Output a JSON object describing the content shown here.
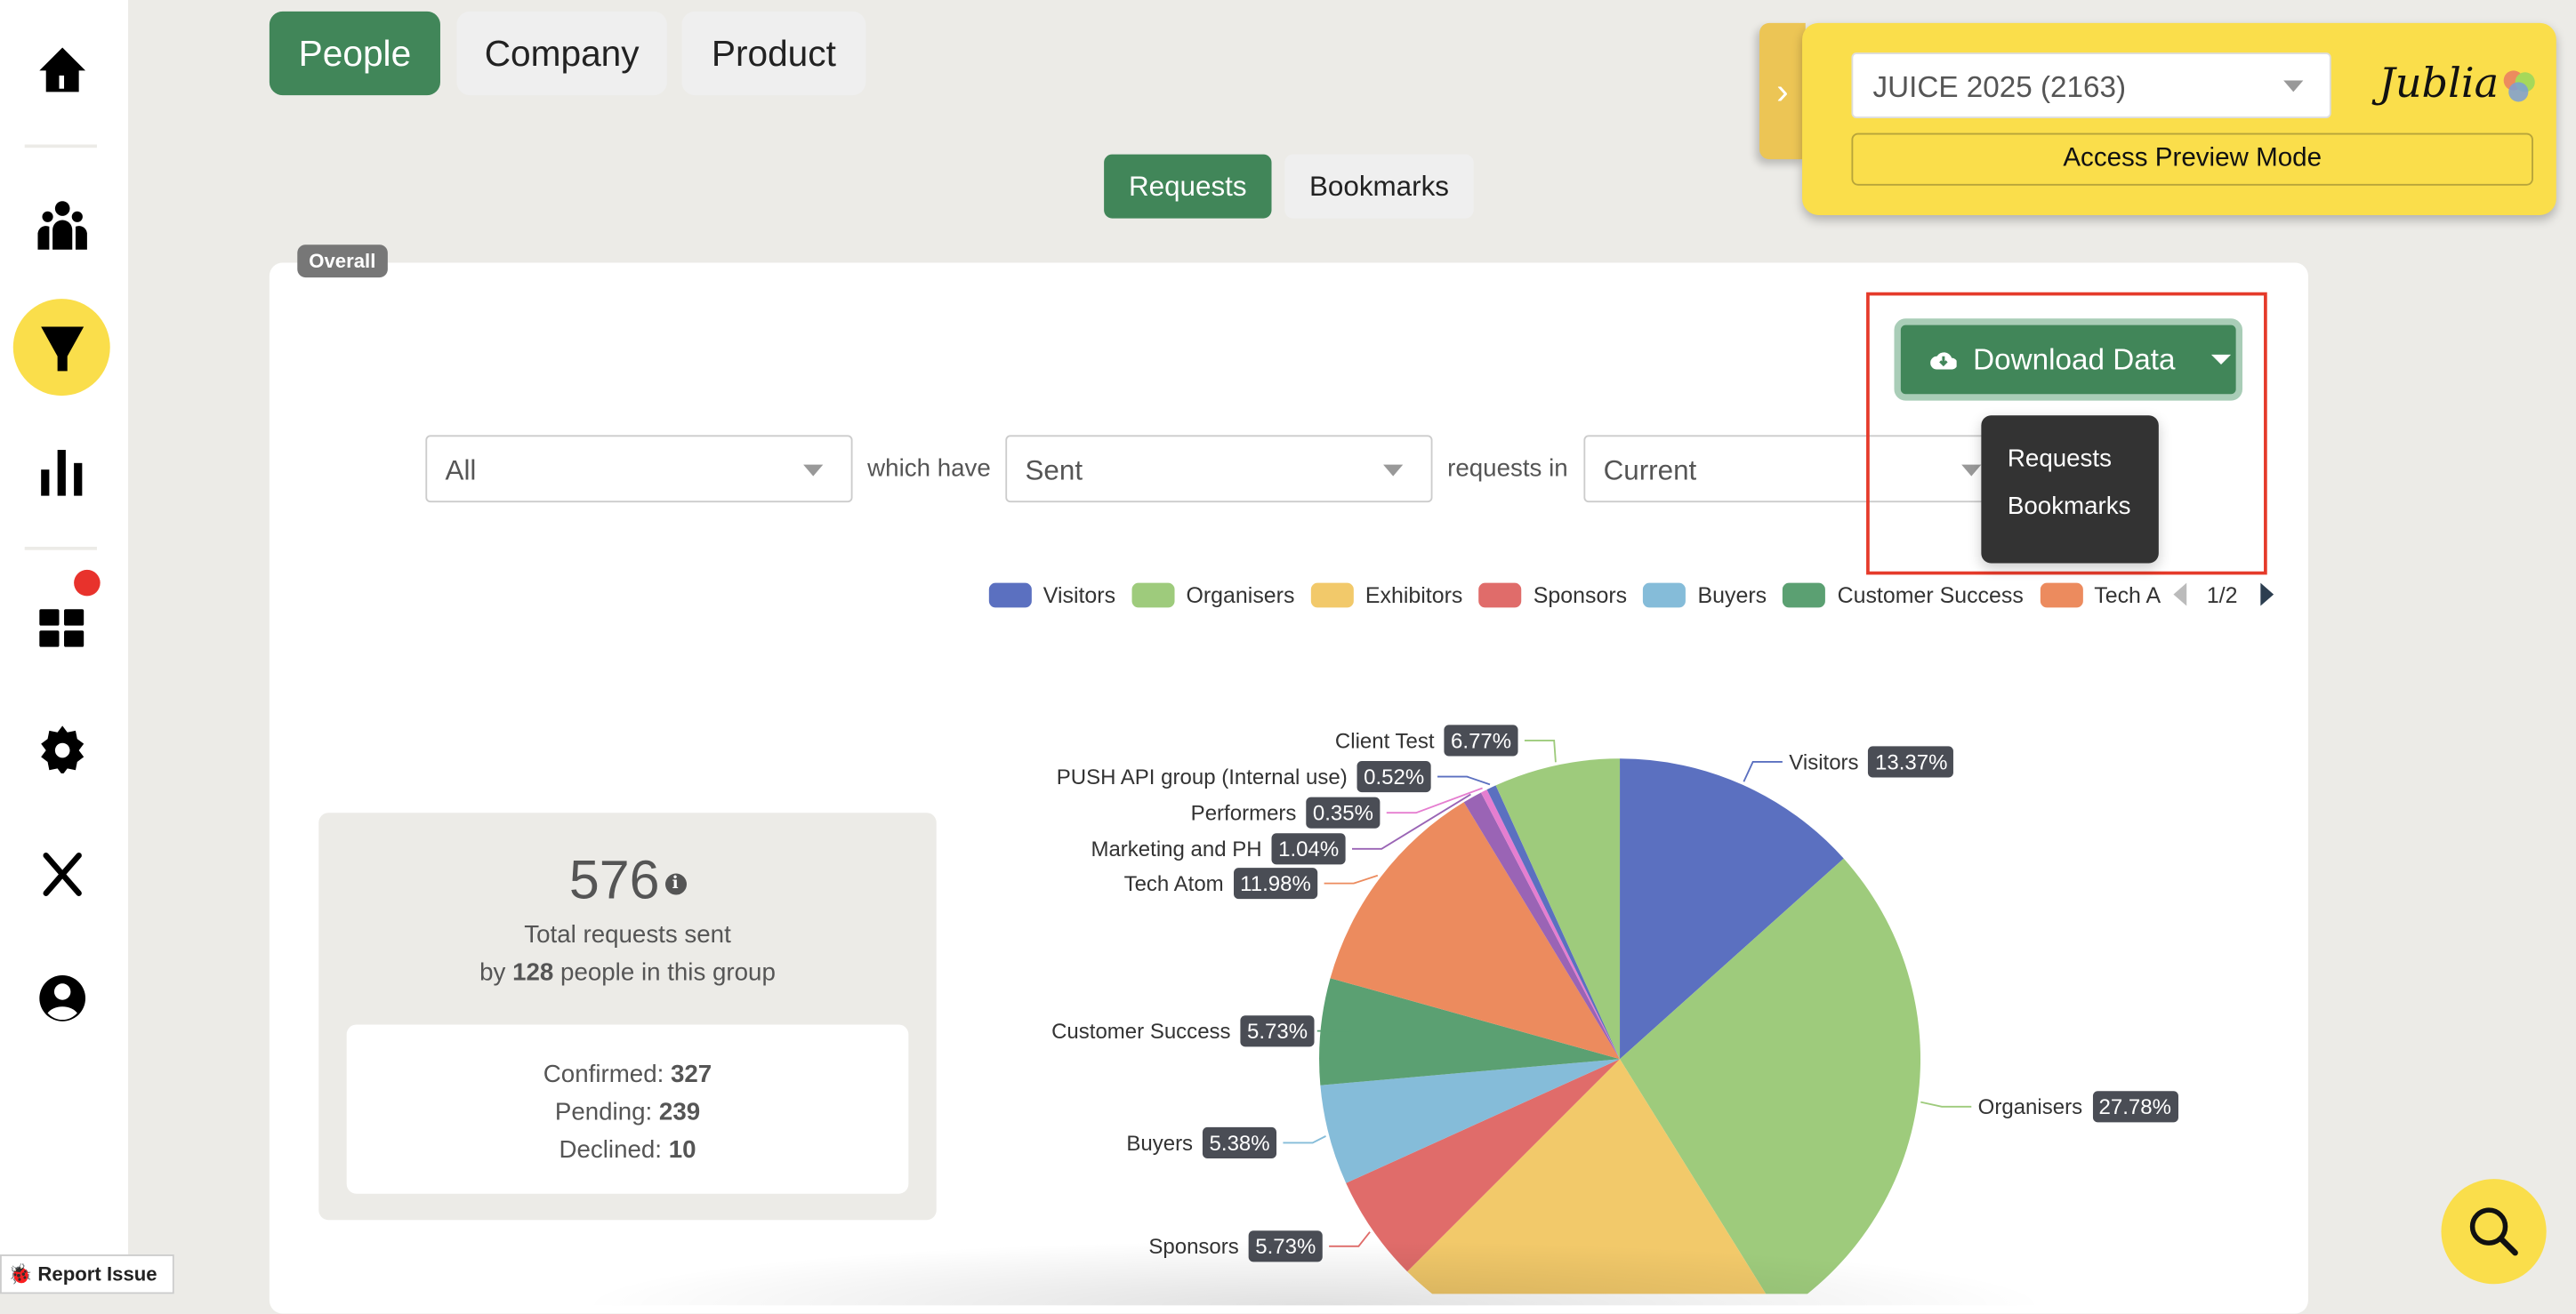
{
  "sidebar": {
    "items": [
      {
        "icon": "home-icon"
      },
      {
        "icon": "people-icon"
      },
      {
        "icon": "funnel-icon",
        "active": true
      },
      {
        "icon": "bar-chart-icon"
      },
      {
        "icon": "dashboard-icon",
        "badge": true
      },
      {
        "icon": "gear-icon"
      },
      {
        "icon": "tools-icon"
      },
      {
        "icon": "user-icon"
      }
    ]
  },
  "tabs": [
    {
      "label": "People",
      "active": true
    },
    {
      "label": "Company"
    },
    {
      "label": "Product"
    }
  ],
  "subtabs": [
    {
      "label": "Requests",
      "active": true
    },
    {
      "label": "Bookmarks"
    }
  ],
  "overall_badge": "Overall",
  "filters": {
    "group": "All",
    "which_have": "which have",
    "status": "Sent",
    "requests_in": "requests in",
    "period": "Current"
  },
  "event_panel": {
    "event": "JUICE 2025 (2163)",
    "preview_button": "Access Preview Mode",
    "logo": "Jublia"
  },
  "download": {
    "label": "Download Data",
    "menu": [
      "Requests",
      "Bookmarks"
    ]
  },
  "legend": {
    "items": [
      {
        "name": "Visitors",
        "color": "#5b70c0"
      },
      {
        "name": "Organisers",
        "color": "#9ecb7c"
      },
      {
        "name": "Exhibitors",
        "color": "#f2c96a"
      },
      {
        "name": "Sponsors",
        "color": "#e06c6a"
      },
      {
        "name": "Buyers",
        "color": "#85bcd9"
      },
      {
        "name": "Customer Success",
        "color": "#5ba072"
      },
      {
        "name": "Tech A",
        "color": "#ec8b5e"
      }
    ],
    "page": "1/2"
  },
  "stats": {
    "total": "576",
    "total_label": "Total requests sent",
    "by": "by",
    "people": "128",
    "people_suffix": "people in this group",
    "confirmed_label": "Confirmed:",
    "confirmed": "327",
    "pending_label": "Pending:",
    "pending": "239",
    "declined_label": "Declined:",
    "declined": "10"
  },
  "chart_data": {
    "type": "pie",
    "slices": [
      {
        "name": "Visitors",
        "value": 13.37,
        "label": "13.37%",
        "color": "#5b70c0"
      },
      {
        "name": "Organisers",
        "value": 27.78,
        "label": "27.78%",
        "color": "#9ecb7c"
      },
      {
        "name": "Exhibitors",
        "value": 21.35,
        "color": "#f2c96a"
      },
      {
        "name": "Sponsors",
        "value": 5.73,
        "label": "5.73%",
        "color": "#e06c6a"
      },
      {
        "name": "Buyers",
        "value": 5.38,
        "label": "5.38%",
        "color": "#85bcd9"
      },
      {
        "name": "Customer Success",
        "value": 5.73,
        "label": "5.73%",
        "color": "#5ba072"
      },
      {
        "name": "Tech Atom",
        "value": 11.98,
        "label": "11.98%",
        "color": "#ec8b5e"
      },
      {
        "name": "Marketing and PH",
        "value": 1.04,
        "label": "1.04%",
        "color": "#9a64b5"
      },
      {
        "name": "Performers",
        "value": 0.35,
        "label": "0.35%",
        "color": "#e57ed0"
      },
      {
        "name": "PUSH API group (Internal use)",
        "value": 0.52,
        "label": "0.52%",
        "color": "#5b70c0"
      },
      {
        "name": "Client Test",
        "value": 6.77,
        "label": "6.77%",
        "color": "#9ecb7c"
      }
    ]
  },
  "report_issue": "Report Issue"
}
